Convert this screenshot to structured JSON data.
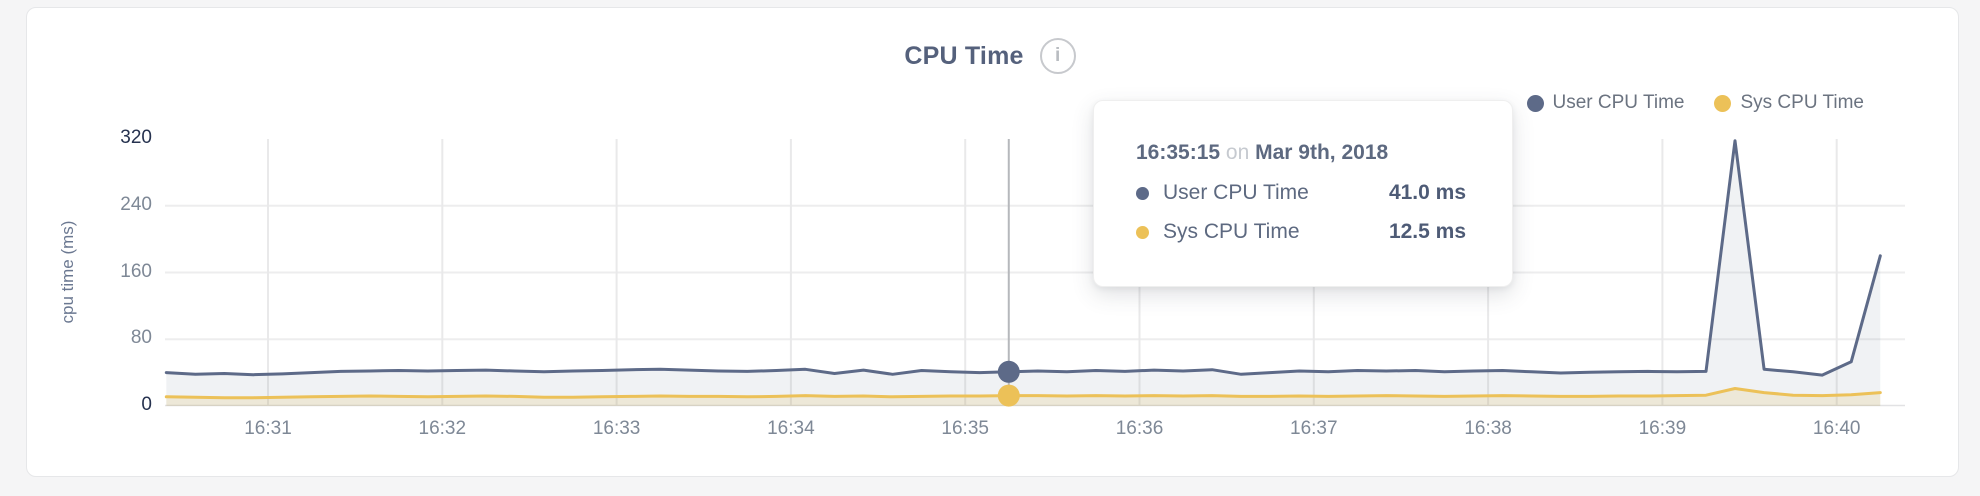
{
  "card": {
    "title": "CPU Time",
    "info_icon_glyph": "i"
  },
  "legend": [
    {
      "label": "User CPU Time",
      "color": "#5d6a88"
    },
    {
      "label": "Sys CPU Time",
      "color": "#ecc158"
    }
  ],
  "tooltip": {
    "time": "16:35:15",
    "conjunction": "on",
    "date": "Mar 9th, 2018",
    "rows": [
      {
        "label": "User CPU Time",
        "value": "41.0 ms",
        "color": "#5d6a88"
      },
      {
        "label": "Sys CPU Time",
        "value": "12.5 ms",
        "color": "#ecc158"
      }
    ]
  },
  "chart_data": {
    "type": "area",
    "title": "CPU Time",
    "xlabel": "",
    "ylabel": "cpu time (ms)",
    "ylim": [
      0,
      320
    ],
    "yticks": [
      0,
      80,
      160,
      240,
      320
    ],
    "xticks": [
      "16:31",
      "16:32",
      "16:33",
      "16:34",
      "16:35",
      "16:36",
      "16:37",
      "16:38",
      "16:39",
      "16:40"
    ],
    "grid": true,
    "legend_position": "top-right",
    "sample_start": "16:30:25",
    "sample_step_seconds": 10,
    "series": [
      {
        "name": "User CPU Time",
        "color": "#5d6a88",
        "fill": "rgba(93,106,136,0.09)",
        "values": [
          40,
          38,
          39,
          37.5,
          38.5,
          40,
          41.5,
          42,
          42.5,
          42,
          42.5,
          43,
          42,
          41,
          42,
          42.5,
          43.5,
          44,
          43,
          42,
          41.5,
          42.5,
          44,
          39,
          43,
          38,
          42.5,
          41,
          40,
          41,
          42,
          41,
          42.5,
          41.5,
          43,
          42,
          43.5,
          38,
          40,
          42,
          41,
          42.5,
          42,
          42.5,
          41,
          42,
          42.5,
          41,
          39.5,
          40.5,
          41,
          41.5,
          41,
          41.5,
          318,
          44,
          41,
          37,
          53,
          180
        ]
      },
      {
        "name": "Sys CPU Time",
        "color": "#ecc158",
        "fill": "rgba(236,193,88,0.18)",
        "values": [
          11,
          10.5,
          10,
          10,
          10.5,
          11,
          11.5,
          12,
          11.5,
          11,
          11.5,
          12,
          11.5,
          10.5,
          10.5,
          11,
          11.5,
          12,
          11.5,
          11.5,
          11,
          11.5,
          12.5,
          11.5,
          12,
          11,
          11.5,
          12,
          12,
          12.5,
          12.5,
          12,
          12.5,
          12,
          12.5,
          12,
          12.5,
          11.5,
          11.5,
          12,
          11.5,
          12,
          12.5,
          12,
          11.5,
          12,
          12.5,
          12,
          11.5,
          11.5,
          12,
          12,
          12.5,
          13,
          21,
          16,
          13,
          12.5,
          13.5,
          16
        ]
      }
    ],
    "hover_point": {
      "time": "16:35:15",
      "date": "Mar 9th, 2018",
      "user_ms": 41.0,
      "sys_ms": 12.5,
      "line_color": "#b6b8bc"
    }
  }
}
